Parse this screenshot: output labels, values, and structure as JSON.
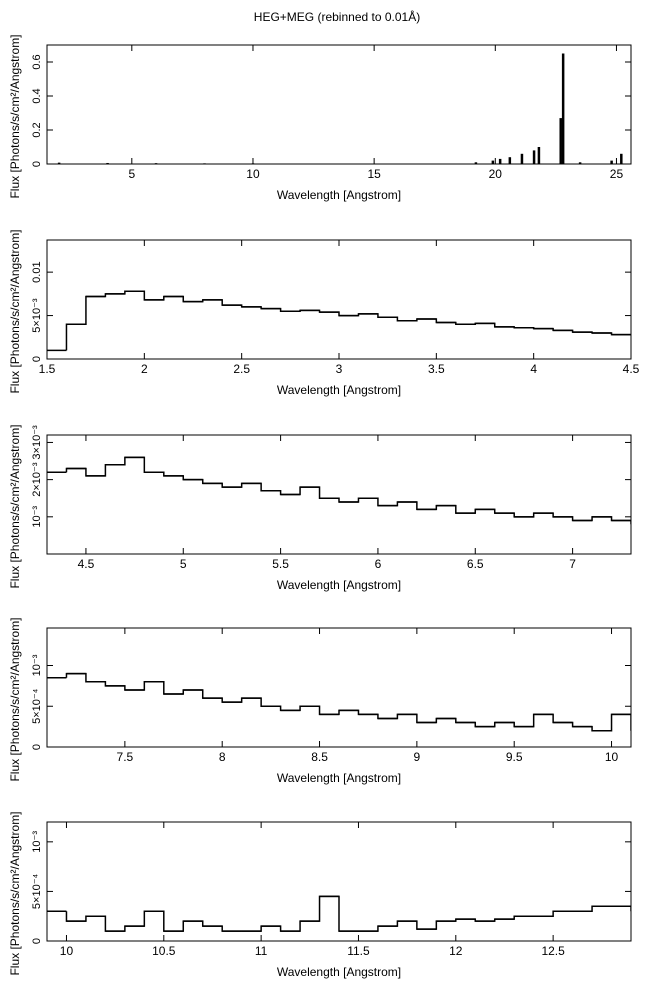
{
  "title": "HEG+MEG (rebinned to 0.01Å)",
  "chart_data": [
    {
      "type": "bar",
      "xlabel": "Wavelength [Angstrom]",
      "ylabel": "Flux [Photons/s/cm²/Angstrom]",
      "color": "#000000",
      "x": [
        2,
        4,
        6,
        8,
        10,
        12,
        14,
        16,
        18,
        19.2,
        19.9,
        20.2,
        20.6,
        21.1,
        21.6,
        21.8,
        22.7,
        22.8,
        23.5,
        24.8,
        25.2
      ],
      "values": [
        0.008,
        0.006,
        0.005,
        0.004,
        0.004,
        0.003,
        0.003,
        0.003,
        0.003,
        0.01,
        0.02,
        0.03,
        0.04,
        0.06,
        0.08,
        0.1,
        0.27,
        0.65,
        0.01,
        0.02,
        0.06
      ],
      "xlim": [
        1.5,
        25.6
      ],
      "xticks": [
        5,
        10,
        15,
        20,
        25
      ],
      "ylim": [
        0,
        0.7
      ],
      "yticks": [
        0,
        0.2,
        0.4,
        0.6
      ]
    },
    {
      "type": "step",
      "xlabel": "Wavelength [Angstrom]",
      "ylabel": "Flux [Photons/s/cm²/Angstrom]",
      "color": "#000000",
      "x": [
        1.5,
        1.6,
        1.7,
        1.8,
        1.9,
        2,
        2.1,
        2.2,
        2.3,
        2.4,
        2.5,
        2.6,
        2.7,
        2.8,
        2.9,
        3,
        3.1,
        3.2,
        3.3,
        3.4,
        3.5,
        3.6,
        3.7,
        3.8,
        3.9,
        4,
        4.1,
        4.2,
        4.3,
        4.4,
        4.5
      ],
      "values": [
        0.001,
        0.004,
        0.0072,
        0.0075,
        0.0078,
        0.0068,
        0.0072,
        0.0066,
        0.0068,
        0.0062,
        0.006,
        0.0058,
        0.0055,
        0.0056,
        0.0054,
        0.005,
        0.0052,
        0.0048,
        0.0044,
        0.0046,
        0.0042,
        0.004,
        0.0041,
        0.0037,
        0.0036,
        0.0035,
        0.0033,
        0.0031,
        0.003,
        0.0028,
        0.0027
      ],
      "xlim": [
        1.5,
        4.5
      ],
      "xticks": [
        1.5,
        2,
        2.5,
        3,
        3.5,
        4,
        4.5
      ],
      "ylim": [
        0,
        0.0137
      ],
      "yticks": [
        0,
        {
          "value": 0.005,
          "label": "5×10⁻³"
        },
        0.01
      ]
    },
    {
      "type": "step",
      "xlabel": "Wavelength [Angstrom]",
      "ylabel": "Flux [Photons/s/cm²/Angstrom]",
      "color": "#000000",
      "x": [
        4.3,
        4.4,
        4.5,
        4.6,
        4.7,
        4.8,
        4.9,
        5,
        5.1,
        5.2,
        5.3,
        5.4,
        5.5,
        5.6,
        5.7,
        5.8,
        5.9,
        6,
        6.1,
        6.2,
        6.3,
        6.4,
        6.5,
        6.6,
        6.7,
        6.8,
        6.9,
        7,
        7.1,
        7.2,
        7.3
      ],
      "values": [
        0.0022,
        0.0023,
        0.0021,
        0.0024,
        0.0026,
        0.0022,
        0.0021,
        0.002,
        0.0019,
        0.0018,
        0.0019,
        0.0017,
        0.0016,
        0.0018,
        0.0015,
        0.0014,
        0.0015,
        0.0013,
        0.0014,
        0.0012,
        0.0013,
        0.0011,
        0.0012,
        0.0011,
        0.001,
        0.0011,
        0.001,
        0.0009,
        0.001,
        0.0009,
        0.0008
      ],
      "xlim": [
        4.3,
        7.3
      ],
      "xticks": [
        4.5,
        5,
        5.5,
        6,
        6.5,
        7
      ],
      "ylim": [
        0,
        0.0032
      ],
      "yticks": [
        {
          "value": 0.001,
          "label": "10⁻³"
        },
        {
          "value": 0.002,
          "label": "2×10⁻³"
        },
        {
          "value": 0.003,
          "label": "3×10⁻³"
        }
      ]
    },
    {
      "type": "step",
      "xlabel": "Wavelength [Angstrom]",
      "ylabel": "Flux [Photons/s/cm²/Angstrom]",
      "color": "#000000",
      "x": [
        7.1,
        7.2,
        7.3,
        7.4,
        7.5,
        7.6,
        7.7,
        7.8,
        7.9,
        8,
        8.1,
        8.2,
        8.3,
        8.4,
        8.5,
        8.6,
        8.7,
        8.8,
        8.9,
        9,
        9.1,
        9.2,
        9.3,
        9.4,
        9.5,
        9.6,
        9.7,
        9.8,
        9.9,
        10,
        10.1
      ],
      "values": [
        0.00085,
        0.0009,
        0.0008,
        0.00075,
        0.0007,
        0.0008,
        0.00065,
        0.0007,
        0.0006,
        0.00055,
        0.0006,
        0.0005,
        0.00045,
        0.0005,
        0.0004,
        0.00045,
        0.0004,
        0.00035,
        0.0004,
        0.0003,
        0.00035,
        0.0003,
        0.00025,
        0.0003,
        0.00025,
        0.0004,
        0.0003,
        0.00025,
        0.0002,
        0.0004,
        0.0002
      ],
      "xlim": [
        7.1,
        10.1
      ],
      "xticks": [
        7.5,
        8,
        8.5,
        9,
        9.5,
        10
      ],
      "ylim": [
        0,
        0.00146
      ],
      "yticks": [
        0,
        {
          "value": 0.0005,
          "label": "5×10⁻⁴"
        },
        {
          "value": 0.001,
          "label": "10⁻³"
        }
      ]
    },
    {
      "type": "step",
      "xlabel": "Wavelength [Angstrom]",
      "ylabel": "Flux [Photons/s/cm²/Angstrom]",
      "color": "#000000",
      "x": [
        9.9,
        10,
        10.1,
        10.2,
        10.3,
        10.4,
        10.5,
        10.6,
        10.7,
        10.8,
        10.9,
        11,
        11.1,
        11.2,
        11.3,
        11.4,
        11.5,
        11.6,
        11.7,
        11.8,
        11.9,
        12,
        12.1,
        12.2,
        12.3,
        12.4,
        12.5,
        12.6,
        12.7,
        12.8,
        12.9
      ],
      "values": [
        0.0003,
        0.0002,
        0.00025,
        0.0001,
        0.00015,
        0.0003,
        0.0001,
        0.0002,
        0.00015,
        0.0001,
        0.0001,
        0.00015,
        0.0001,
        0.0002,
        0.00045,
        0.0001,
        0.0001,
        0.00015,
        0.0002,
        0.00012,
        0.0002,
        0.00022,
        0.0002,
        0.00022,
        0.00025,
        0.00025,
        0.0003,
        0.0003,
        0.00035,
        0.00035,
        0.0003
      ],
      "xlim": [
        9.9,
        12.9
      ],
      "xticks": [
        10,
        10.5,
        11,
        11.5,
        12,
        12.5
      ],
      "ylim": [
        0,
        0.0012
      ],
      "yticks": [
        0,
        {
          "value": 0.0005,
          "label": "5×10⁻⁴"
        },
        {
          "value": 0.001,
          "label": "10⁻³"
        }
      ]
    }
  ]
}
